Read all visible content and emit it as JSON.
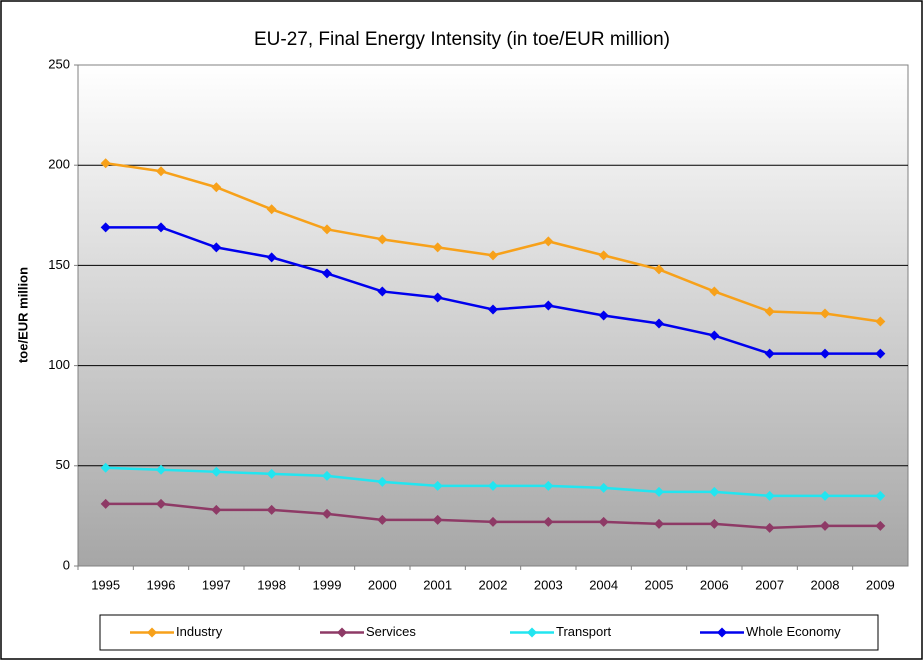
{
  "chart_data": {
    "type": "line",
    "title": "EU-27, Final Energy Intensity (in toe/EUR million)",
    "y_label": "toe/EUR million",
    "categories": [
      "1995",
      "1996",
      "1997",
      "1998",
      "1999",
      "2000",
      "2001",
      "2002",
      "2003",
      "2004",
      "2005",
      "2006",
      "2007",
      "2008",
      "2009"
    ],
    "series": [
      {
        "name": "Industry",
        "color": "#f7a11a",
        "values": [
          201,
          197,
          189,
          178,
          168,
          163,
          159,
          155,
          162,
          155,
          148,
          137,
          127,
          126,
          122
        ]
      },
      {
        "name": "Services",
        "color": "#8e3a66",
        "values": [
          31,
          31,
          28,
          28,
          26,
          23,
          23,
          22,
          22,
          22,
          21,
          21,
          19,
          20,
          20
        ]
      },
      {
        "name": "Transport",
        "color": "#22e5f0",
        "values": [
          49,
          48,
          47,
          46,
          45,
          42,
          40,
          40,
          40,
          39,
          37,
          37,
          35,
          35,
          35
        ]
      },
      {
        "name": "Whole Economy",
        "color": "#0000ee",
        "values": [
          169,
          169,
          159,
          154,
          146,
          137,
          134,
          128,
          130,
          125,
          121,
          115,
          106,
          106,
          106
        ]
      }
    ],
    "ylim": [
      0,
      250
    ],
    "yticks": [
      0,
      50,
      100,
      150,
      200,
      250
    ],
    "grid": true,
    "legend": "bottom"
  }
}
